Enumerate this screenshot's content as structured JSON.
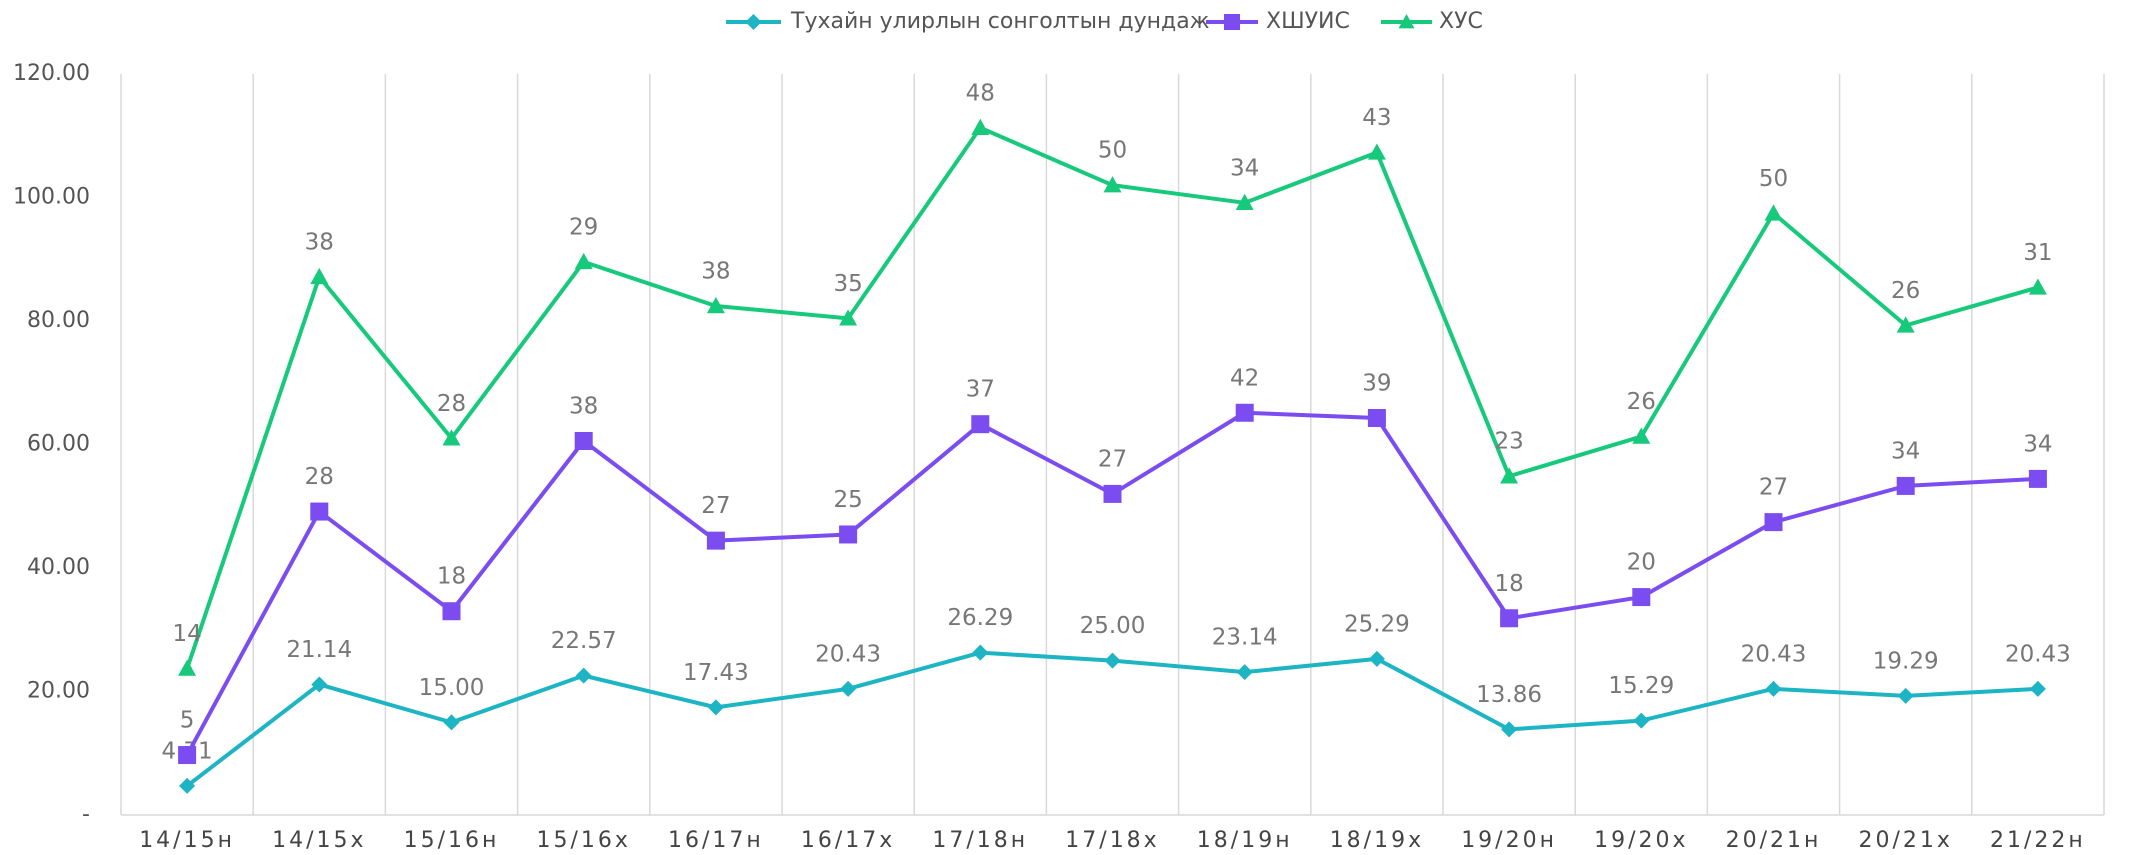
{
  "chart_data": {
    "type": "line",
    "stacked": true,
    "categories": [
      "14/15н",
      "14/15х",
      "15/16н",
      "15/16х",
      "16/17н",
      "16/17х",
      "17/18н",
      "17/18х",
      "18/19н",
      "18/19х",
      "19/20н",
      "19/20х",
      "20/21н",
      "20/21х",
      "21/22н"
    ],
    "series": [
      {
        "name": "Тухайн улирлын сонголтын дундаж",
        "color": "#1db4c3",
        "marker": "diamond",
        "values": [
          4.71,
          21.14,
          15.0,
          22.57,
          17.43,
          20.43,
          26.29,
          25.0,
          23.14,
          25.29,
          13.86,
          15.29,
          20.43,
          19.29,
          20.43
        ],
        "value_labels": [
          "4.71",
          "21.14",
          "15.00",
          "22.57",
          "17.43",
          "20.43",
          "26.29",
          "25.00",
          "23.14",
          "25.29",
          "13.86",
          "15.29",
          "20.43",
          "19.29",
          "20.43"
        ]
      },
      {
        "name": "ХШУИС",
        "color": "#7b4cf0",
        "marker": "square",
        "values": [
          5,
          28,
          18,
          38,
          27,
          25,
          37,
          27,
          42,
          39,
          18,
          20,
          27,
          34,
          34
        ]
      },
      {
        "name": "ХУС",
        "color": "#17c97b",
        "marker": "triangle",
        "values": [
          14,
          38,
          28,
          29,
          38,
          35,
          48,
          50,
          34,
          43,
          23,
          26,
          50,
          26,
          31
        ]
      }
    ],
    "ylim": [
      0,
      120
    ],
    "yticks": [
      {
        "value": 0,
        "label": "-"
      },
      {
        "value": 20,
        "label": "20.00"
      },
      {
        "value": 40,
        "label": "40.00"
      },
      {
        "value": 60,
        "label": "60.00"
      },
      {
        "value": 80,
        "label": "80.00"
      },
      {
        "value": 100,
        "label": "100.00"
      },
      {
        "value": 120,
        "label": "120.00"
      }
    ],
    "grid": true,
    "legend": "top"
  }
}
